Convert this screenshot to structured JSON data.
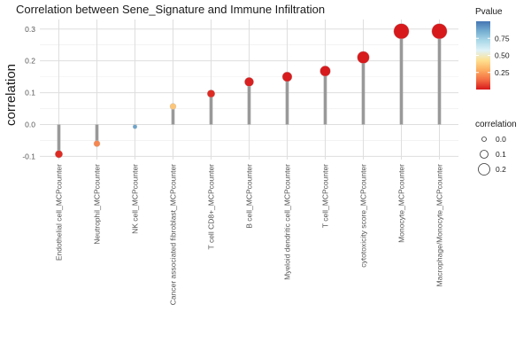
{
  "chart_data": {
    "type": "lollipop",
    "title": "Correlation between Sene_Signature and Immune Infiltration",
    "xlabel": "",
    "ylabel": "correlation",
    "ylim": [
      -0.11,
      0.33
    ],
    "yticks": [
      -0.1,
      0.0,
      0.1,
      0.2,
      0.3
    ],
    "ytick_labels": [
      "-0.1",
      "0.0",
      "0.1",
      "0.2",
      "0.3"
    ],
    "grid": true,
    "categories": [
      "Endothelial cell_MCPcounter",
      "Neutrophil_MCPcounter",
      "NK cell_MCPcounter",
      "Cancer associated fibroblast_MCPcounter",
      "T cell CD8+_MCPcounter",
      "B cell_MCPcounter",
      "Myeloid dendritic cell_MCPcounter",
      "T cell_MCPcounter",
      "cytotoxicity score_MCPcounter",
      "Monocyte_MCPcounter",
      "Macrophage/Monocyte_MCPcounter"
    ],
    "values": [
      -0.093,
      -0.06,
      -0.007,
      0.057,
      0.097,
      0.134,
      0.15,
      0.168,
      0.211,
      0.293,
      0.293
    ],
    "pvalues": [
      0.03,
      0.2,
      0.88,
      0.35,
      0.03,
      0.01,
      0.005,
      0.001,
      0.001,
      0.0,
      0.0
    ],
    "stem_color": "#999999",
    "legend": {
      "placement": "right",
      "pvalue": {
        "title": "Pvalue",
        "ticks": [
          0.75,
          0.5,
          0.25
        ],
        "tick_labels": [
          "0.75",
          "0.50",
          "0.25"
        ],
        "range": [
          0,
          1
        ],
        "colors": [
          "#d7191c",
          "#f46d43",
          "#fdae61",
          "#fee090",
          "#e0f3f8",
          "#abd9e9",
          "#74add1",
          "#4575b4"
        ]
      },
      "correlation": {
        "title": "correlation",
        "entries": [
          0.0,
          0.1,
          0.2
        ],
        "labels": [
          "0.0",
          "0.1",
          "0.2"
        ]
      }
    }
  }
}
